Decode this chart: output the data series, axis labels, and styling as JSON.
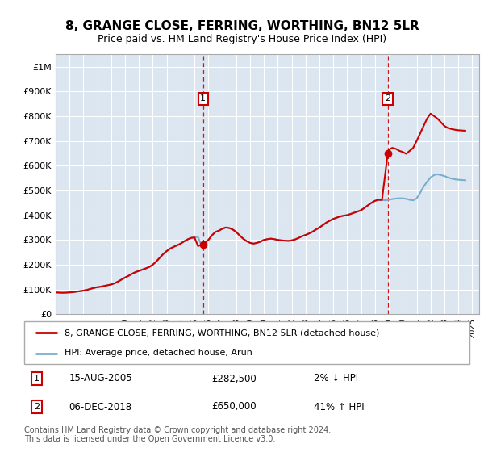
{
  "title": "8, GRANGE CLOSE, FERRING, WORTHING, BN12 5LR",
  "subtitle": "Price paid vs. HM Land Registry's House Price Index (HPI)",
  "background_color": "#ffffff",
  "plot_bg_color": "#dce6f1",
  "ylabel_ticks": [
    "£0",
    "£100K",
    "£200K",
    "£300K",
    "£400K",
    "£500K",
    "£600K",
    "£700K",
    "£800K",
    "£900K",
    "£1M"
  ],
  "ytick_values": [
    0,
    100000,
    200000,
    300000,
    400000,
    500000,
    600000,
    700000,
    800000,
    900000,
    1000000
  ],
  "ylim": [
    0,
    1050000
  ],
  "xlim_start": 1995.0,
  "xlim_end": 2025.5,
  "sale1_x": 2005.62,
  "sale1_y": 282500,
  "sale1_label": "1",
  "sale1_date": "15-AUG-2005",
  "sale1_price": "£282,500",
  "sale1_hpi": "2% ↓ HPI",
  "sale2_x": 2018.92,
  "sale2_y": 650000,
  "sale2_label": "2",
  "sale2_date": "06-DEC-2018",
  "sale2_price": "£650,000",
  "sale2_hpi": "41% ↑ HPI",
  "legend_label1": "8, GRANGE CLOSE, FERRING, WORTHING, BN12 5LR (detached house)",
  "legend_label2": "HPI: Average price, detached house, Arun",
  "footer": "Contains HM Land Registry data © Crown copyright and database right 2024.\nThis data is licensed under the Open Government Licence v3.0.",
  "line_color_price": "#cc0000",
  "line_color_hpi": "#7aadce",
  "sale_marker_color": "#cc0000",
  "grid_color": "#ffffff",
  "hpi_years": [
    1995.0,
    1995.25,
    1995.5,
    1995.75,
    1996.0,
    1996.25,
    1996.5,
    1996.75,
    1997.0,
    1997.25,
    1997.5,
    1997.75,
    1998.0,
    1998.25,
    1998.5,
    1998.75,
    1999.0,
    1999.25,
    1999.5,
    1999.75,
    2000.0,
    2000.25,
    2000.5,
    2000.75,
    2001.0,
    2001.25,
    2001.5,
    2001.75,
    2002.0,
    2002.25,
    2002.5,
    2002.75,
    2003.0,
    2003.25,
    2003.5,
    2003.75,
    2004.0,
    2004.25,
    2004.5,
    2004.75,
    2005.0,
    2005.25,
    2005.5,
    2005.75,
    2006.0,
    2006.25,
    2006.5,
    2006.75,
    2007.0,
    2007.25,
    2007.5,
    2007.75,
    2008.0,
    2008.25,
    2008.5,
    2008.75,
    2009.0,
    2009.25,
    2009.5,
    2009.75,
    2010.0,
    2010.25,
    2010.5,
    2010.75,
    2011.0,
    2011.25,
    2011.5,
    2011.75,
    2012.0,
    2012.25,
    2012.5,
    2012.75,
    2013.0,
    2013.25,
    2013.5,
    2013.75,
    2014.0,
    2014.25,
    2014.5,
    2014.75,
    2015.0,
    2015.25,
    2015.5,
    2015.75,
    2016.0,
    2016.25,
    2016.5,
    2016.75,
    2017.0,
    2017.25,
    2017.5,
    2017.75,
    2018.0,
    2018.25,
    2018.5,
    2018.75,
    2019.0,
    2019.25,
    2019.5,
    2019.75,
    2020.0,
    2020.25,
    2020.5,
    2020.75,
    2021.0,
    2021.25,
    2021.5,
    2021.75,
    2022.0,
    2022.25,
    2022.5,
    2022.75,
    2023.0,
    2023.25,
    2023.5,
    2023.75,
    2024.0,
    2024.25,
    2024.5
  ],
  "hpi_values": [
    88000,
    87000,
    86500,
    87000,
    88000,
    89000,
    91000,
    93000,
    95000,
    98000,
    102000,
    106000,
    109000,
    111000,
    114000,
    117000,
    120000,
    125000,
    132000,
    140000,
    148000,
    155000,
    163000,
    170000,
    175000,
    180000,
    185000,
    191000,
    200000,
    213000,
    228000,
    243000,
    255000,
    265000,
    272000,
    278000,
    285000,
    294000,
    302000,
    308000,
    310000,
    312000,
    278000,
    290000,
    300000,
    318000,
    332000,
    337000,
    345000,
    350000,
    348000,
    342000,
    332000,
    318000,
    305000,
    295000,
    288000,
    285000,
    288000,
    293000,
    300000,
    303000,
    305000,
    303000,
    300000,
    298000,
    297000,
    296000,
    298000,
    302000,
    308000,
    315000,
    320000,
    326000,
    333000,
    342000,
    350000,
    360000,
    370000,
    378000,
    385000,
    390000,
    395000,
    398000,
    400000,
    405000,
    410000,
    415000,
    420000,
    430000,
    440000,
    450000,
    458000,
    462000,
    461000,
    460000,
    462000,
    465000,
    467000,
    468000,
    468000,
    466000,
    462000,
    460000,
    468000,
    490000,
    515000,
    535000,
    552000,
    562000,
    565000,
    562000,
    558000,
    552000,
    548000,
    545000,
    543000,
    542000,
    541000
  ],
  "price_years": [
    1995.0,
    1995.25,
    1995.5,
    1995.75,
    1996.0,
    1996.25,
    1996.5,
    1996.75,
    1997.0,
    1997.25,
    1997.5,
    1997.75,
    1998.0,
    1998.25,
    1998.5,
    1998.75,
    1999.0,
    1999.25,
    1999.5,
    1999.75,
    2000.0,
    2000.25,
    2000.5,
    2000.75,
    2001.0,
    2001.25,
    2001.5,
    2001.75,
    2002.0,
    2002.25,
    2002.5,
    2002.75,
    2003.0,
    2003.25,
    2003.5,
    2003.75,
    2004.0,
    2004.25,
    2004.5,
    2004.75,
    2005.0,
    2005.25,
    2005.62,
    2005.75,
    2006.0,
    2006.25,
    2006.5,
    2006.75,
    2007.0,
    2007.25,
    2007.5,
    2007.75,
    2008.0,
    2008.25,
    2008.5,
    2008.75,
    2009.0,
    2009.25,
    2009.5,
    2009.75,
    2010.0,
    2010.25,
    2010.5,
    2010.75,
    2011.0,
    2011.25,
    2011.5,
    2011.75,
    2012.0,
    2012.25,
    2012.5,
    2012.75,
    2013.0,
    2013.25,
    2013.5,
    2013.75,
    2014.0,
    2014.25,
    2014.5,
    2014.75,
    2015.0,
    2015.25,
    2015.5,
    2015.75,
    2016.0,
    2016.25,
    2016.5,
    2016.75,
    2017.0,
    2017.25,
    2017.5,
    2017.75,
    2018.0,
    2018.25,
    2018.5,
    2018.92,
    2019.0,
    2019.25,
    2019.5,
    2019.75,
    2020.0,
    2020.25,
    2020.5,
    2020.75,
    2021.0,
    2021.25,
    2021.5,
    2021.75,
    2022.0,
    2022.25,
    2022.5,
    2022.75,
    2023.0,
    2023.25,
    2023.5,
    2023.75,
    2024.0,
    2024.25,
    2024.5
  ],
  "price_values": [
    88000,
    87000,
    86500,
    87000,
    88000,
    89000,
    91000,
    93000,
    95000,
    98000,
    102000,
    106000,
    109000,
    111000,
    114000,
    117000,
    120000,
    125000,
    132000,
    140000,
    148000,
    155000,
    163000,
    170000,
    175000,
    180000,
    185000,
    191000,
    200000,
    213000,
    228000,
    243000,
    255000,
    265000,
    272000,
    278000,
    285000,
    294000,
    302000,
    308000,
    310000,
    275000,
    282500,
    290000,
    300000,
    318000,
    332000,
    337000,
    345000,
    350000,
    348000,
    342000,
    332000,
    318000,
    305000,
    295000,
    288000,
    285000,
    288000,
    293000,
    300000,
    303000,
    305000,
    303000,
    300000,
    298000,
    297000,
    296000,
    298000,
    302000,
    308000,
    315000,
    320000,
    326000,
    333000,
    342000,
    350000,
    360000,
    370000,
    378000,
    385000,
    390000,
    395000,
    398000,
    400000,
    405000,
    410000,
    415000,
    420000,
    430000,
    440000,
    450000,
    458000,
    462000,
    461000,
    650000,
    665000,
    672000,
    668000,
    660000,
    655000,
    648000,
    660000,
    672000,
    700000,
    730000,
    760000,
    790000,
    810000,
    800000,
    790000,
    775000,
    760000,
    752000,
    748000,
    745000,
    743000,
    742000,
    741000
  ]
}
